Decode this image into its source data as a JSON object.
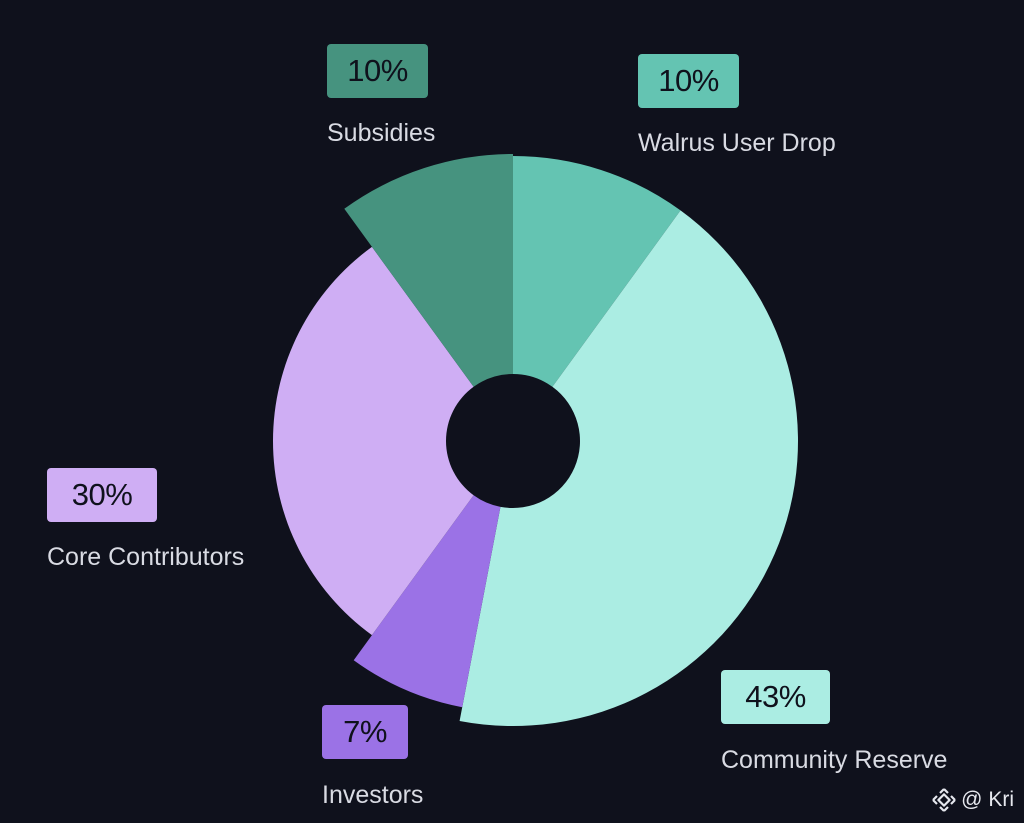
{
  "chart_data": {
    "type": "pie",
    "slices": [
      {
        "label": "Walrus User Drop",
        "value": 10,
        "percent_label": "10%",
        "color": "#64c4b2"
      },
      {
        "label": "Community Reserve",
        "value": 43,
        "percent_label": "43%",
        "color": "#abede3"
      },
      {
        "label": "Investors",
        "value": 7,
        "percent_label": "7%",
        "color": "#9b72e6"
      },
      {
        "label": "Core Contributors",
        "value": 30,
        "percent_label": "30%",
        "color": "#cfaef4"
      },
      {
        "label": "Subsidies",
        "value": 10,
        "percent_label": "10%",
        "color": "#46937f"
      }
    ]
  },
  "watermark": {
    "text": "@ Kri",
    "icon": "binance-logo-icon"
  }
}
